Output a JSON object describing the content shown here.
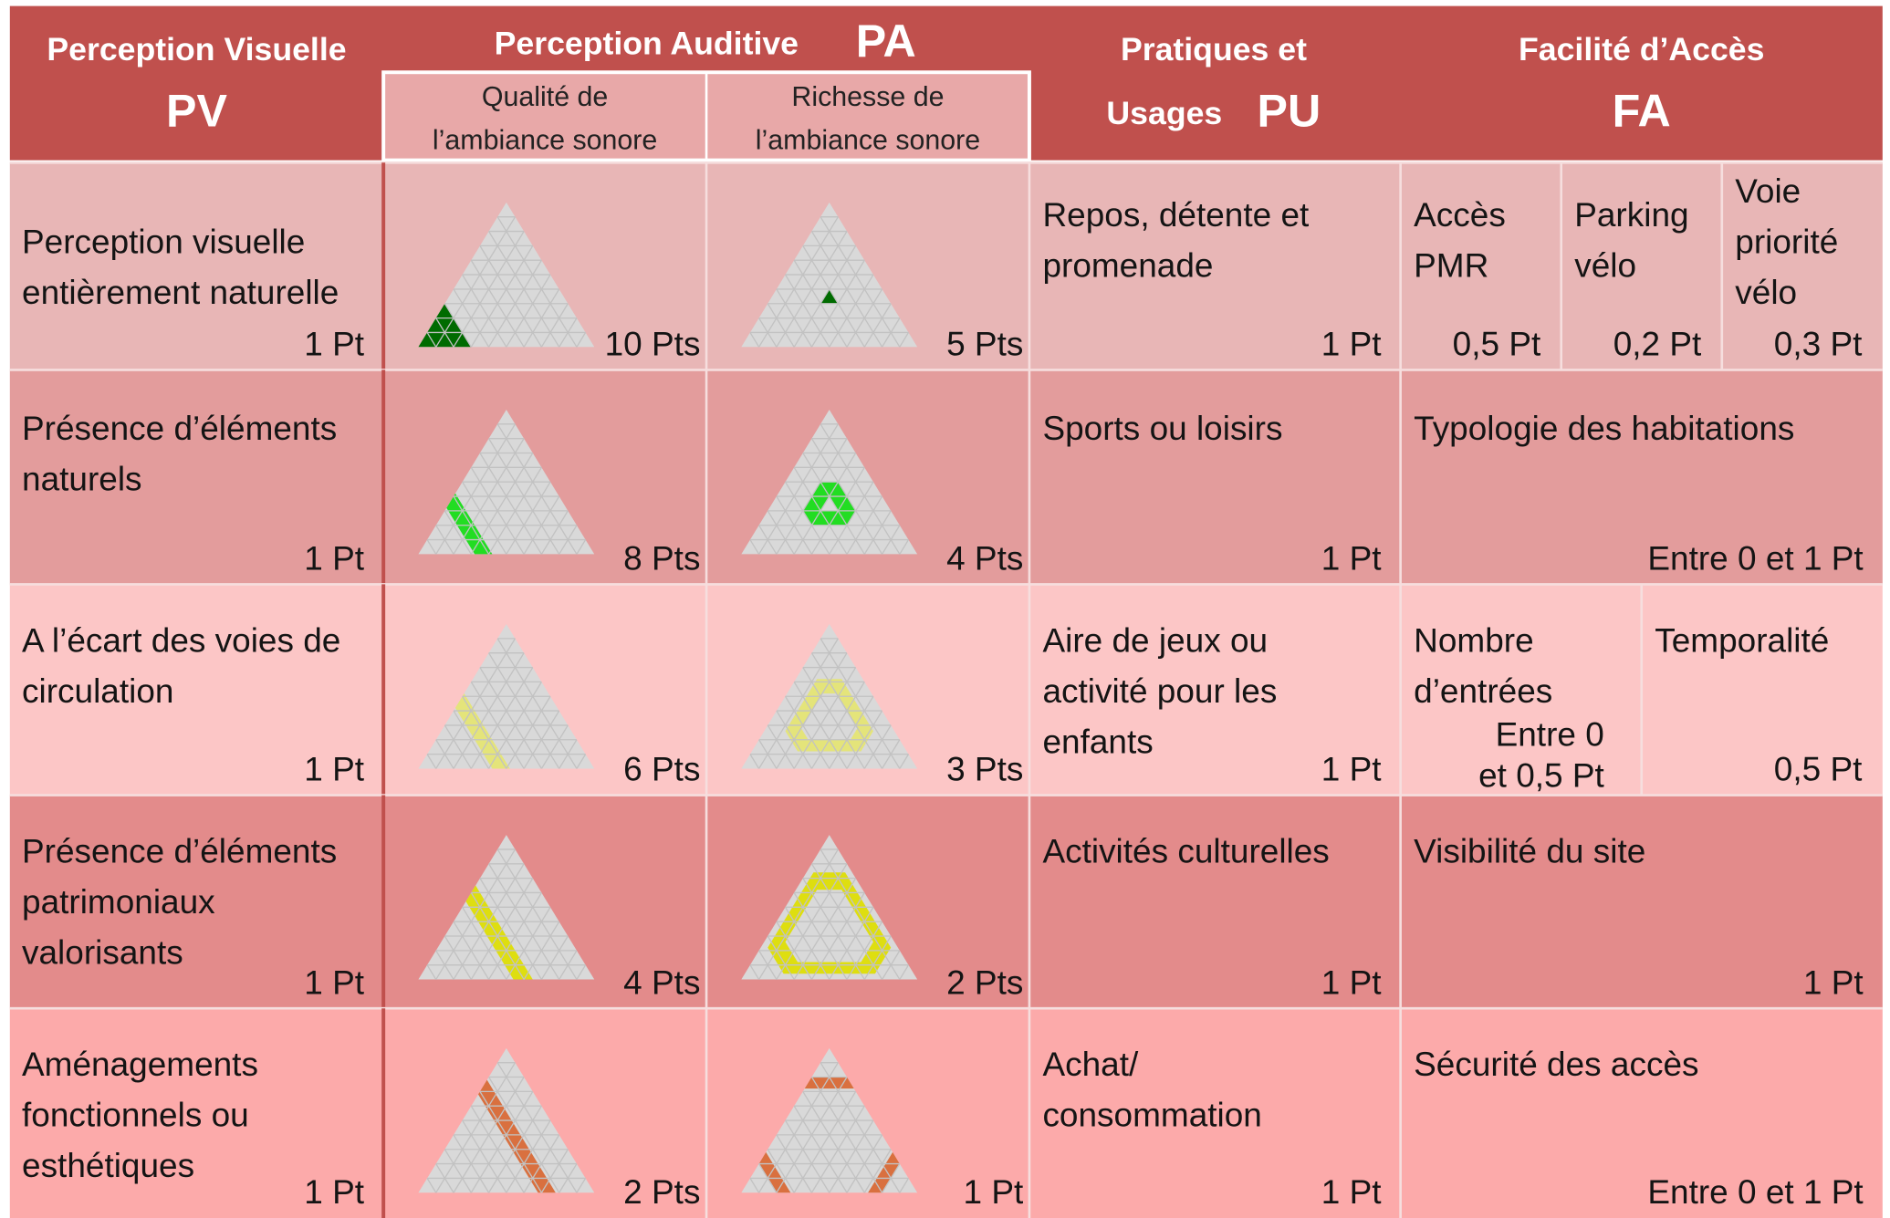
{
  "header": {
    "pv": {
      "title": "Perception Visuelle",
      "abbr": "PV"
    },
    "pa": {
      "title": "Perception Auditive",
      "abbr": "PA",
      "columns": [
        [
          "Qualité de",
          "l’ambiance sonore"
        ],
        [
          "Richesse de",
          "l’ambiance sonore"
        ]
      ]
    },
    "pu": {
      "title": "Pratiques et",
      "subtitle": "Usages",
      "abbr": "PU"
    },
    "fa": {
      "title": "Facilité d’Accès",
      "abbr": "FA"
    }
  },
  "rows": [
    {
      "pv": {
        "label": [
          "Perception visuelle",
          "entièrement naturelle"
        ],
        "points": "1 Pt"
      },
      "pa": [
        "10 Pts",
        "5 Pts"
      ],
      "pu": {
        "label": [
          "Repos, détente et",
          "promenade"
        ],
        "points": "1 Pt"
      },
      "fa": [
        {
          "label": [
            "Accès",
            "PMR"
          ],
          "points": "0,5 Pt"
        },
        {
          "label": [
            "Parking",
            "vélo"
          ],
          "points": "0,2 Pt"
        },
        {
          "label": [
            "Voie",
            "priorité",
            "vélo"
          ],
          "points": "0,3 Pt"
        }
      ]
    },
    {
      "pv": {
        "label": [
          "Présence d’éléments",
          "naturels"
        ],
        "points": "1 Pt"
      },
      "pa": [
        "8 Pts",
        "4 Pts"
      ],
      "pu": {
        "label": [
          "Sports ou loisirs"
        ],
        "points": "1 Pt"
      },
      "fa": [
        {
          "label": [
            "Typologie des habitations"
          ],
          "points": "Entre 0 et 1 Pt"
        }
      ]
    },
    {
      "pv": {
        "label": [
          "A l’écart des voies de",
          "circulation"
        ],
        "points": "1 Pt"
      },
      "pa": [
        "6 Pts",
        "3 Pts"
      ],
      "pu": {
        "label": [
          "Aire de jeux ou",
          "activité pour les",
          "enfants"
        ],
        "points": "1 Pt"
      },
      "fa": [
        {
          "label": [
            "Nombre",
            "d’entrées"
          ],
          "points": [
            "Entre 0",
            "et 0,5 Pt"
          ]
        },
        {
          "label": [
            "Temporalité"
          ],
          "points": "0,5 Pt"
        }
      ]
    },
    {
      "pv": {
        "label": [
          "Présence d’éléments",
          "patrimoniaux",
          "valorisants"
        ],
        "points": "1 Pt"
      },
      "pa": [
        "4 Pts",
        "2 Pts"
      ],
      "pu": {
        "label": [
          "Activités culturelles"
        ],
        "points": "1 Pt"
      },
      "fa": [
        {
          "label": [
            "Visibilité du site"
          ],
          "points": "1 Pt"
        }
      ]
    },
    {
      "pv": {
        "label": [
          "Aménagements",
          "fonctionnels ou",
          "esthétiques"
        ],
        "points": "1 Pt"
      },
      "pa": [
        "2 Pts",
        "1 Pt"
      ],
      "pu": {
        "label": [
          "Achat/",
          "consommation"
        ],
        "points": "1 Pt"
      },
      "fa": [
        {
          "label": [
            "Sécurité des accès"
          ],
          "points": "Entre 0 et 1 Pt"
        }
      ]
    }
  ]
}
